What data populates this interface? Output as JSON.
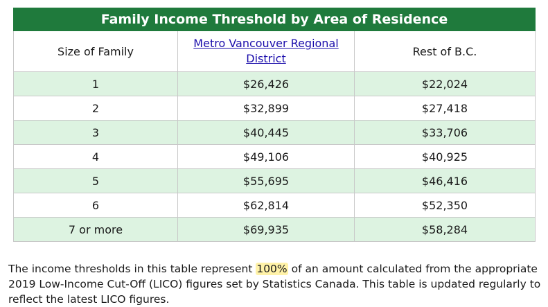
{
  "table": {
    "title": "Family Income Threshold by Area of Residence",
    "headers": [
      "Size of Family",
      "Metro Vancouver Regional District",
      "Rest of B.C."
    ],
    "rows": [
      [
        "1",
        "$26,426",
        "$22,024"
      ],
      [
        "2",
        "$32,899",
        "$27,418"
      ],
      [
        "3",
        "$40,445",
        "$33,706"
      ],
      [
        "4",
        "$49,106",
        "$40,925"
      ],
      [
        "5",
        "$55,695",
        "$46,416"
      ],
      [
        "6",
        "$62,814",
        "$52,350"
      ],
      [
        "7 or more",
        "$69,935",
        "$58,284"
      ]
    ]
  },
  "note": {
    "before": "The income thresholds in this table represent ",
    "highlight": "100%",
    "after": " of an amount calculated from the appropriate 2019 Low-Income Cut-Off (LICO) figures set by Statistics Canada. This table is updated regularly to reflect the latest LICO figures."
  },
  "colors": {
    "title_bg": "#1f7a3c",
    "alt_row_bg": "#ddf3e1",
    "link": "#1a0dab",
    "highlight": "#fff2a8"
  }
}
